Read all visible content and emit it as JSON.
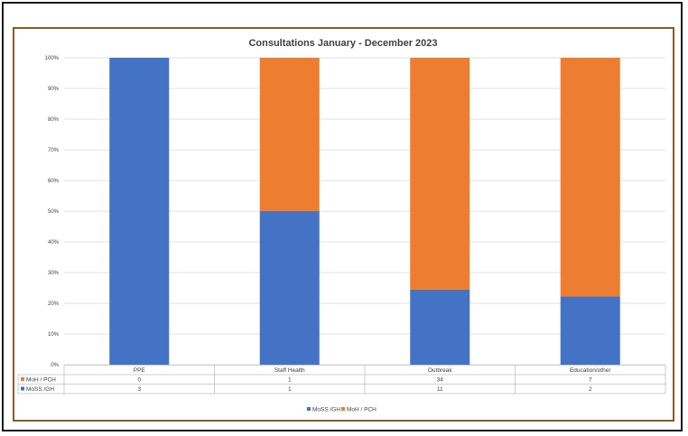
{
  "chart_data": {
    "type": "bar",
    "stacked": "percent",
    "title": "Consultations January - December 2023",
    "categories": [
      "PPE",
      "Staff Health",
      "Outbreak",
      "Education/other"
    ],
    "series": [
      {
        "name": "MoSS /GH",
        "values": [
          3,
          1,
          11,
          2
        ],
        "color": "#4472c4"
      },
      {
        "name": "MoH / PCH",
        "values": [
          0,
          1,
          34,
          7
        ],
        "color": "#ed7d31"
      }
    ],
    "yticks": [
      "0%",
      "10%",
      "20%",
      "30%",
      "40%",
      "50%",
      "60%",
      "70%",
      "80%",
      "90%",
      "100%"
    ],
    "ylim": [
      0,
      100
    ],
    "grid": true,
    "data_table": true,
    "legend_position": "bottom"
  }
}
